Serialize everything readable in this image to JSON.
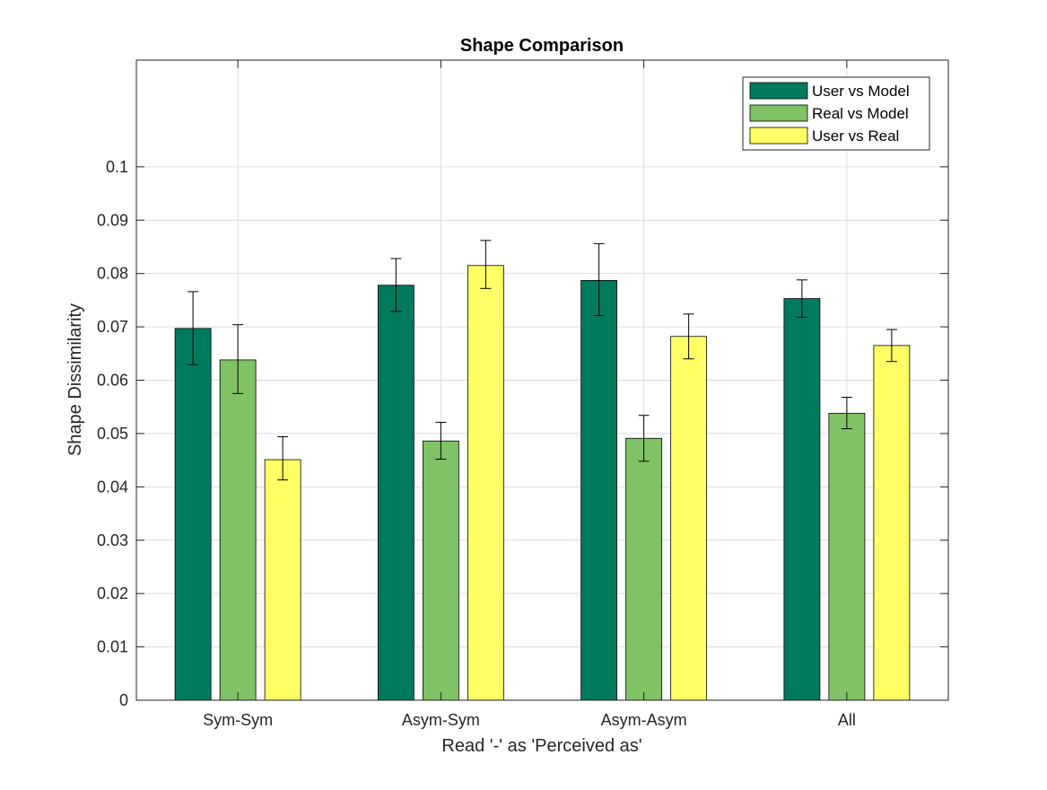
{
  "chart_data": {
    "type": "bar",
    "title": "Shape Comparison",
    "xlabel": "Read '-' as 'Perceived as'",
    "ylabel": "Shape Dissimilarity",
    "categories": [
      "Sym-Sym",
      "Asym-Sym",
      "Asym-Asym",
      "All"
    ],
    "ylim": [
      0,
      0.12
    ],
    "yticks": [
      0,
      0.01,
      0.02,
      0.03,
      0.04,
      0.05,
      0.06,
      0.07,
      0.08,
      0.09,
      0.1
    ],
    "ytick_labels": [
      "0",
      "0.01",
      "0.02",
      "0.03",
      "0.04",
      "0.05",
      "0.06",
      "0.07",
      "0.08",
      "0.09",
      "0.1"
    ],
    "grid": true,
    "legend_position": "top-right",
    "series": [
      {
        "name": "User vs Model",
        "color": "#007a5e",
        "values": [
          0.0697,
          0.0778,
          0.0787,
          0.0753
        ],
        "error_low": [
          0.0629,
          0.0729,
          0.0721,
          0.0718
        ],
        "error_high": [
          0.0766,
          0.0828,
          0.0856,
          0.0788
        ]
      },
      {
        "name": "Real vs Model",
        "color": "#80c266",
        "values": [
          0.0638,
          0.0486,
          0.0491,
          0.0538
        ],
        "error_low": [
          0.0575,
          0.0452,
          0.0448,
          0.0509
        ],
        "error_high": [
          0.0704,
          0.0521,
          0.0534,
          0.0568
        ]
      },
      {
        "name": "User vs Real",
        "color": "#ffff66",
        "values": [
          0.0451,
          0.0815,
          0.0682,
          0.0665
        ],
        "error_low": [
          0.0413,
          0.0772,
          0.064,
          0.0635
        ],
        "error_high": [
          0.0494,
          0.0862,
          0.0724,
          0.0695
        ]
      }
    ]
  }
}
